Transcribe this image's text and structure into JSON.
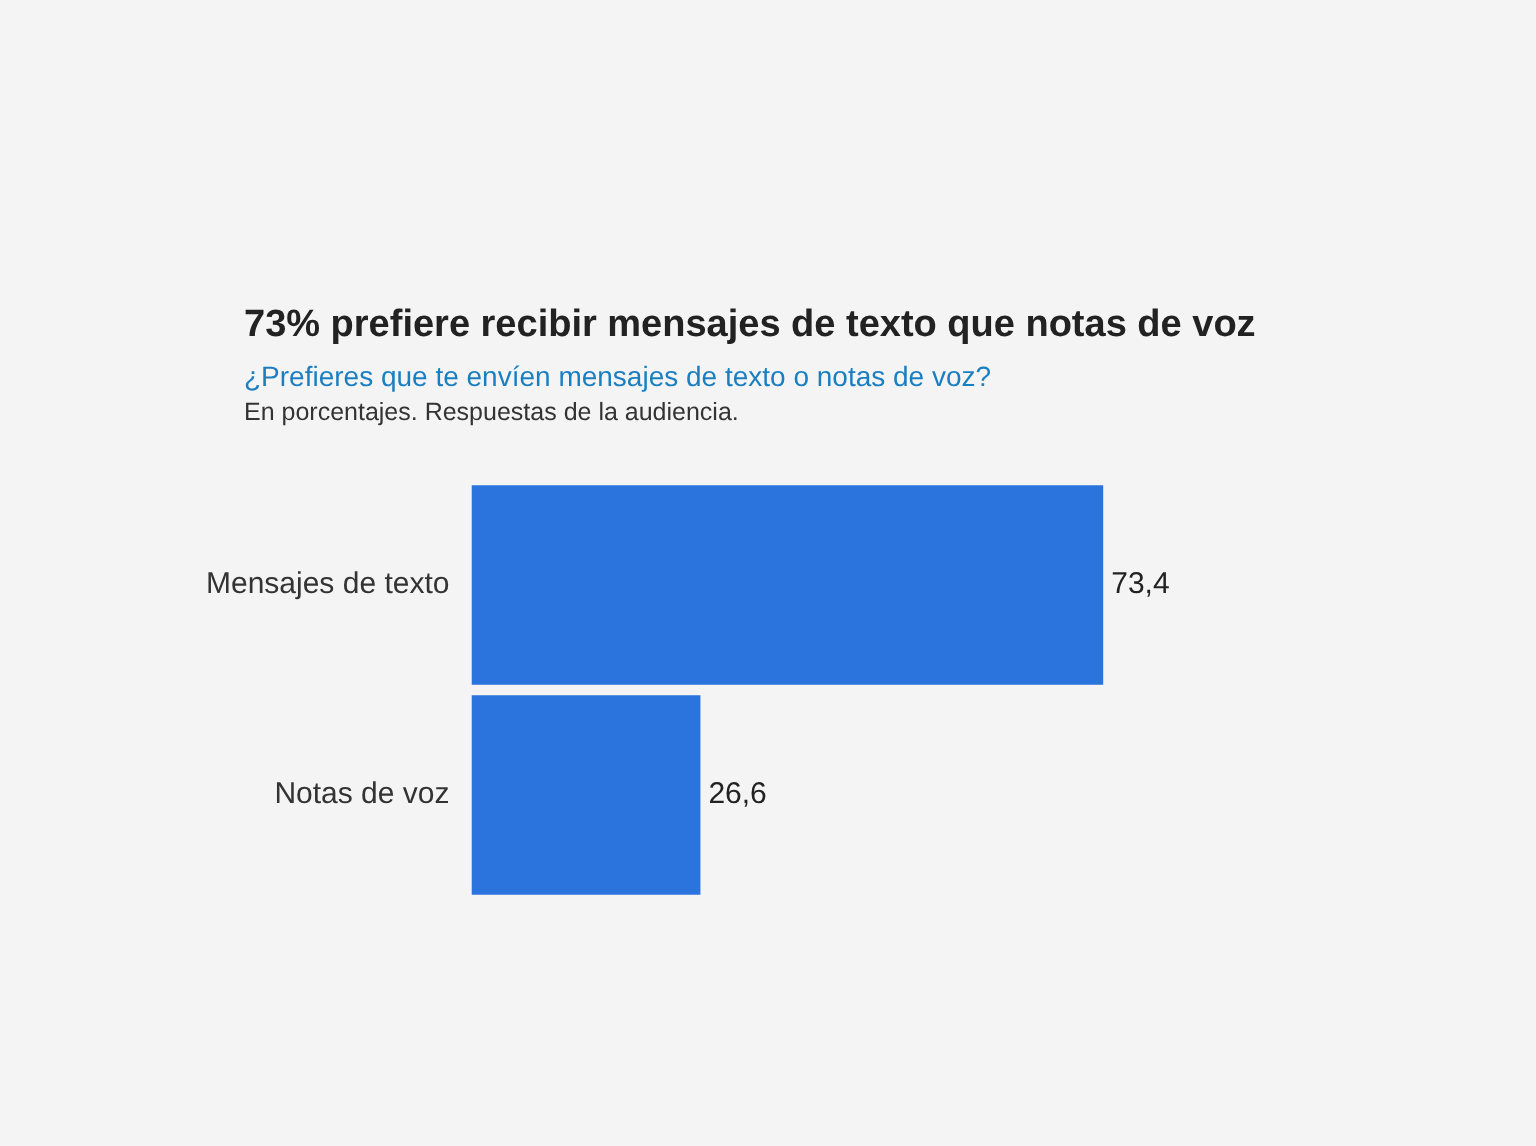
{
  "chart_data": {
    "type": "bar",
    "orientation": "horizontal",
    "title": "73% prefiere recibir mensajes de texto que notas de voz",
    "subtitle": "¿Prefieres que te envíen mensajes de texto o notas de voz?",
    "annotations": [
      "En porcentajes. Respuestas de la audiencia."
    ],
    "categories": [
      "Mensajes de texto",
      "Notas de voz"
    ],
    "values": [
      73.4,
      26.6
    ],
    "color": "#2b74dd",
    "value_labels": [
      "73,4",
      "26,6"
    ]
  }
}
